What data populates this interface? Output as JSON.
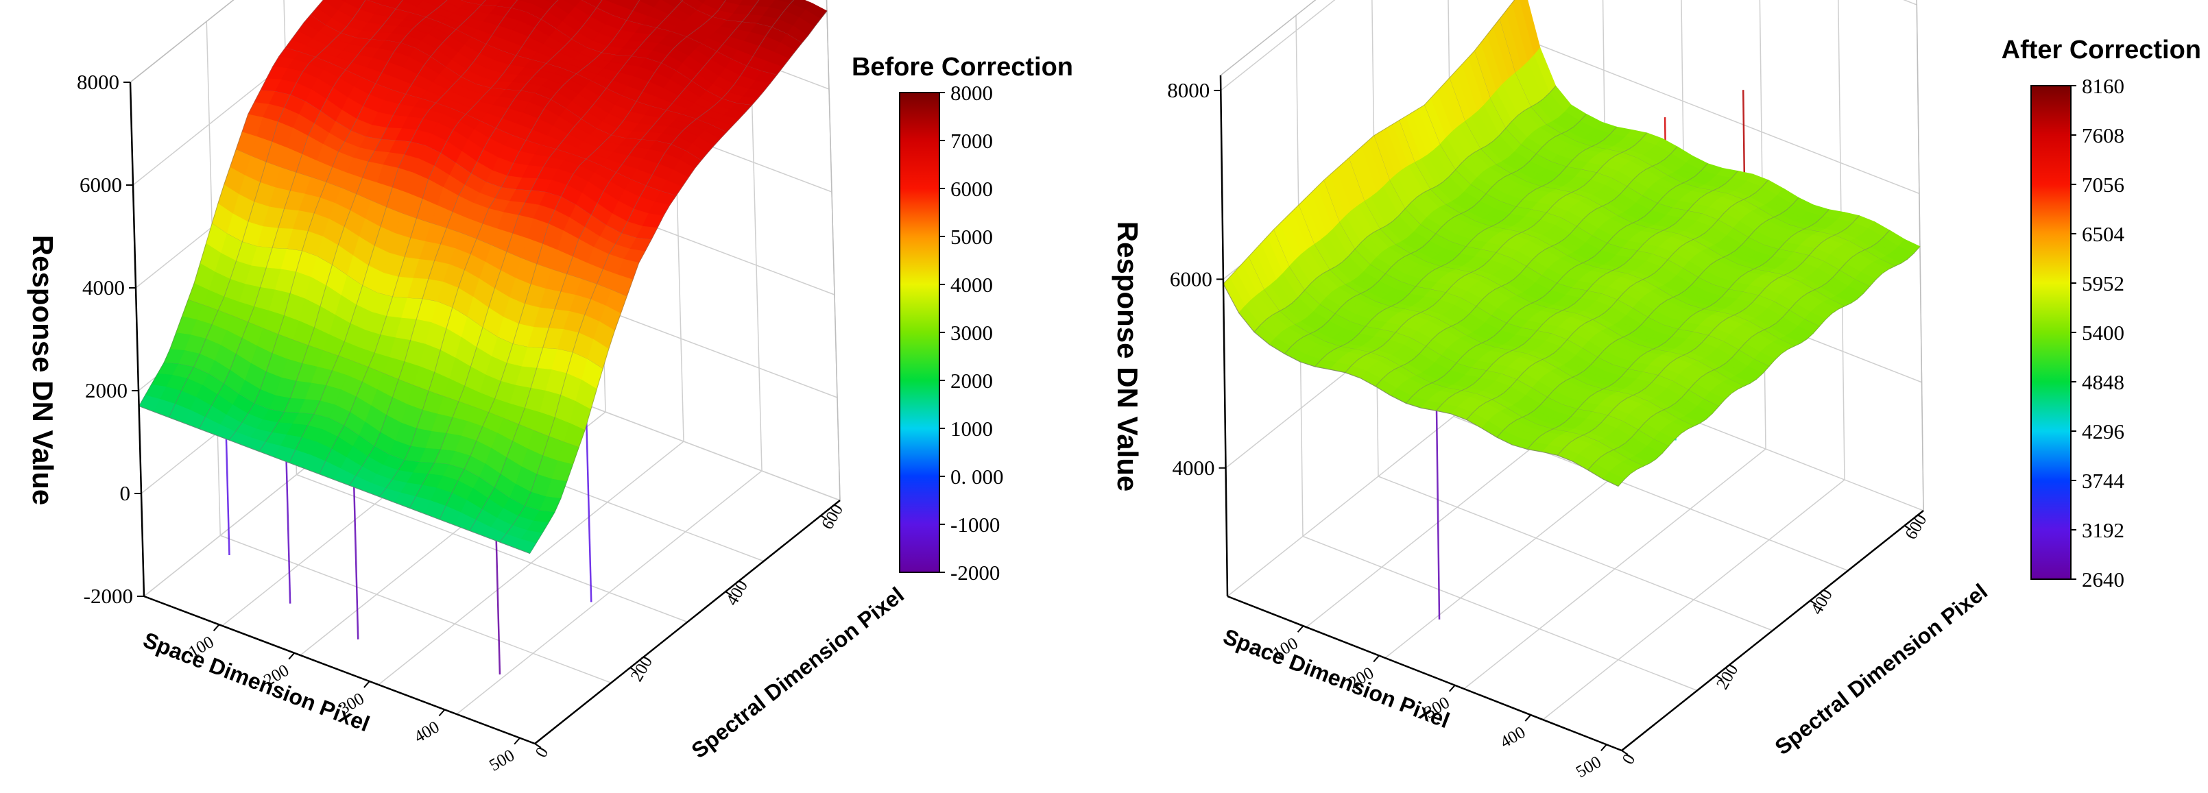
{
  "chart_data": [
    {
      "type": "surface3d",
      "title": "Before Correction",
      "zlabel": "Response DN Value",
      "xlabel": "Space Dimension Pixel",
      "ylabel": "Spectral Dimension Pixel",
      "z_ticks": [
        "8000",
        "6000",
        "4000",
        "2000",
        "0",
        "-2000"
      ],
      "x_ticks": [
        "100",
        "200",
        "300",
        "400",
        "500"
      ],
      "y_ticks": [
        "0",
        "200",
        "400",
        "600"
      ],
      "zlim": [
        -2000,
        8000
      ],
      "xlim": [
        0,
        520
      ],
      "ylim": [
        0,
        640
      ],
      "colorbar": {
        "ticks": [
          "8000",
          "7000",
          "6000",
          "5000",
          "4000",
          "3000",
          "2000",
          "1000",
          "0. 000",
          "-1000",
          "-2000"
        ],
        "range": [
          -2000,
          8000
        ]
      },
      "surface_profile_along_spectral": [
        {
          "spectral": 0,
          "value": 1700
        },
        {
          "spectral": 60,
          "value": 2200
        },
        {
          "spectral": 120,
          "value": 3200
        },
        {
          "spectral": 180,
          "value": 4500
        },
        {
          "spectral": 240,
          "value": 5600
        },
        {
          "spectral": 300,
          "value": 6200
        },
        {
          "spectral": 360,
          "value": 6500
        },
        {
          "spectral": 420,
          "value": 6700
        },
        {
          "spectral": 480,
          "value": 6900
        },
        {
          "spectral": 540,
          "value": 7100
        },
        {
          "spectral": 600,
          "value": 7300
        },
        {
          "spectral": 640,
          "value": 7500
        }
      ],
      "spikes": [
        {
          "space": 90,
          "spectral": 40,
          "value": -1000
        },
        {
          "space": 170,
          "spectral": 40,
          "value": -1500
        },
        {
          "space": 260,
          "spectral": 40,
          "value": -1700
        },
        {
          "space": 470,
          "spectral": 200,
          "value": -1000
        },
        {
          "space": 410,
          "spectral": 100,
          "value": -2000
        },
        {
          "space": 140,
          "spectral": 560,
          "value": 8000
        }
      ]
    },
    {
      "type": "surface3d",
      "title": "After Correction",
      "zlabel": "Response DN Value",
      "xlabel": "Space Dimension Pixel",
      "ylabel": "Spectral Dimension Pixel",
      "z_ticks": [
        "8000",
        "6000",
        "4000"
      ],
      "x_ticks": [
        "100",
        "200",
        "300",
        "400",
        "500"
      ],
      "y_ticks": [
        "0",
        "200",
        "400",
        "600"
      ],
      "zlim": [
        2640,
        8160
      ],
      "xlim": [
        0,
        520
      ],
      "ylim": [
        0,
        640
      ],
      "colorbar": {
        "ticks": [
          "8160",
          "7608",
          "7056",
          "6504",
          "5952",
          "5400",
          "4848",
          "4296",
          "3744",
          "3192",
          "2640"
        ],
        "range": [
          2640,
          8160
        ]
      },
      "surface_profile_along_spectral": [
        {
          "spectral": 0,
          "value": 5500
        },
        {
          "spectral": 120,
          "value": 5500
        },
        {
          "spectral": 240,
          "value": 5500
        },
        {
          "spectral": 360,
          "value": 5500
        },
        {
          "spectral": 480,
          "value": 5500
        },
        {
          "spectral": 640,
          "value": 5500
        }
      ],
      "back_edge_profile": [
        5950,
        6100,
        6200,
        6250,
        6150,
        6300,
        6550
      ],
      "spikes": [
        {
          "space": 230,
          "spectral": 80,
          "value": 2800
        },
        {
          "space": 380,
          "spectral": 330,
          "value": 7600
        },
        {
          "space": 440,
          "spectral": 400,
          "value": 7800
        },
        {
          "space": 60,
          "spectral": 500,
          "value": 6800
        },
        {
          "space": 420,
          "spectral": 280,
          "value": 4500
        }
      ]
    }
  ]
}
